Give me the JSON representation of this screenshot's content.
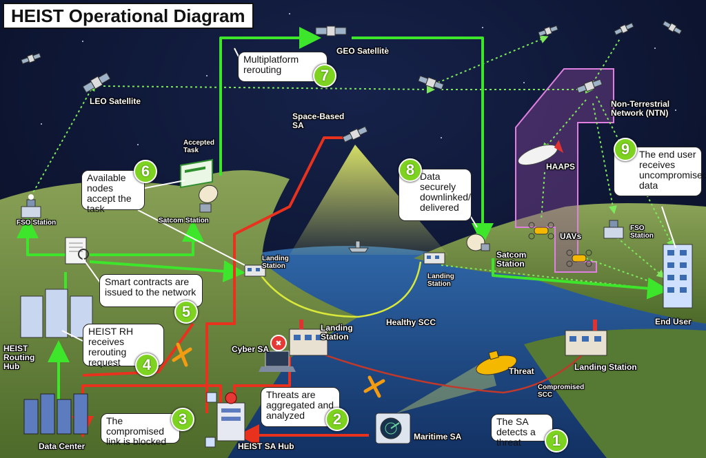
{
  "title": "HEIST Operational Diagram",
  "labels": {
    "geo_satellite": "GEO Satellite",
    "leo_satellite": "LEO Satellite",
    "space_based_sa": "Space-Based SA",
    "ntn": "Non-Terrestrial Network (NTN)",
    "haaps": "HAAPS",
    "uavs": "UAVs",
    "fso_station_left": "FSO Station",
    "fso_station_right": "FSO Station",
    "accepted_task": "Accepted Task",
    "satcom_station_left": "Satcom Station",
    "satcom_station_right": "Satcom Station",
    "landing_station_1": "Landing Station",
    "landing_station_2": "Landing Station",
    "landing_station_3": "Landing Station",
    "landing_station_4": "Landing Station",
    "healthy_scc": "Healthy SCC",
    "compromised_scc": "Compromised SCC",
    "cyber_sa": "Cyber SA",
    "threat": "Threat",
    "heist_routing_hub": "HEIST Routing Hub",
    "data_center": "Data Center",
    "heist_sa_hub": "HEIST SA Hub",
    "maritime_sa": "Maritime SA",
    "end_user": "End User"
  },
  "steps": [
    {
      "number": "1",
      "text": "The SA detects a threat"
    },
    {
      "number": "2",
      "text": "Threats are aggregated and analyzed"
    },
    {
      "number": "3",
      "text": "The compromised link is blocked"
    },
    {
      "number": "4",
      "text": "HEIST RH receives rerouting request"
    },
    {
      "number": "5",
      "text": "Smart contracts are issued to the network"
    },
    {
      "number": "6",
      "text": "Available nodes accept the task"
    },
    {
      "number": "7",
      "text": "Multiplatform rerouting"
    },
    {
      "number": "8",
      "text": "Data securely downlinked/ delivered"
    },
    {
      "number": "9",
      "text": "The end user receives uncompromised data"
    }
  ],
  "colors": {
    "sky": "#0a1430",
    "land": "#6f8a3c",
    "sea": "#1c4a8c",
    "green_path": "#3ee62b",
    "red_path": "#e8321e",
    "blocked_x": "#f39c12",
    "badge": "#7ed321",
    "ntn_box": "#c070c0"
  },
  "icons": [
    "satellite-icon",
    "server-icon",
    "dish-icon",
    "uav-icon",
    "airship-icon",
    "submarine-icon",
    "radar-icon",
    "alarm-icon",
    "building-icon"
  ]
}
